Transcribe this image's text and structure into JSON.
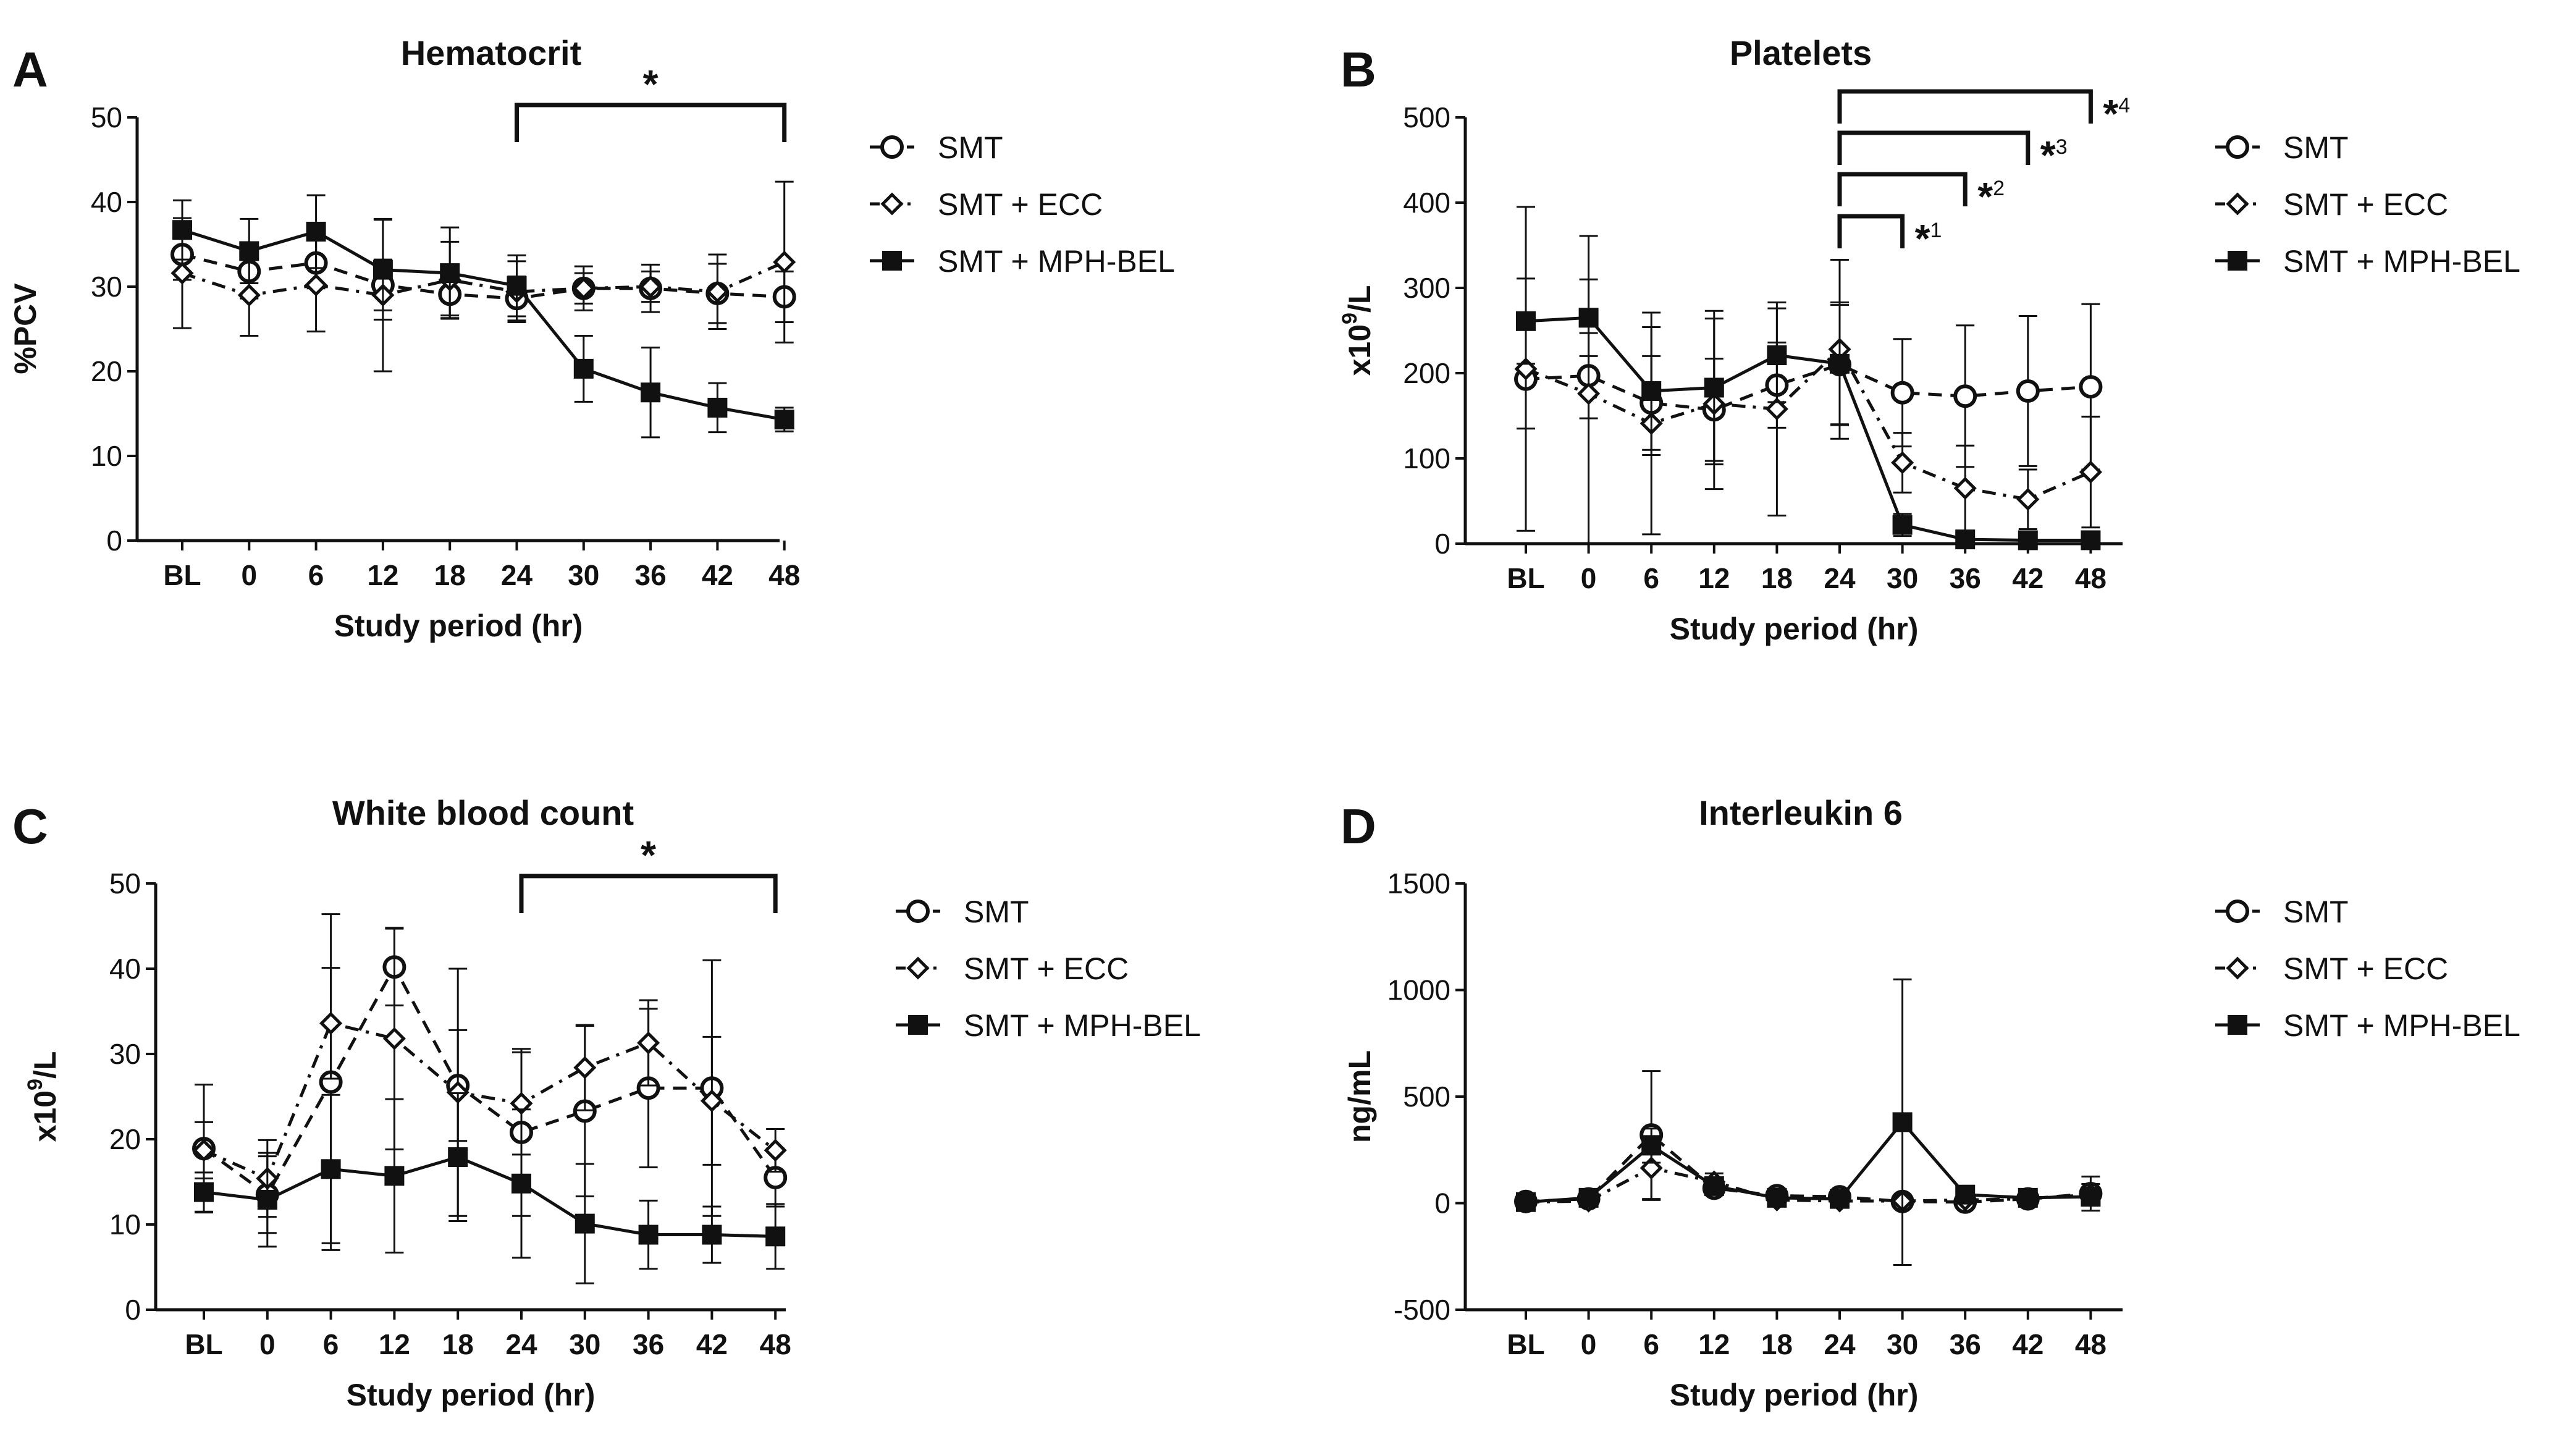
{
  "chart_data": [
    {
      "panel": "A",
      "type": "line",
      "title": "Hematocrit",
      "xlabel": "Study period (hr)",
      "ylabel": "%PCV",
      "categories": [
        "BL",
        "0",
        "6",
        "12",
        "18",
        "24",
        "30",
        "36",
        "42",
        "48"
      ],
      "ylim": [
        0,
        50
      ],
      "yticks": [
        "0",
        "10",
        "20",
        "30",
        "40",
        "50"
      ],
      "series": [
        {
          "name": "SMT",
          "marker": "open-circle",
          "dash": "dashed",
          "values": [
            33.8,
            31.8,
            32.8,
            30.2,
            29.1,
            28.6,
            29.8,
            29.8,
            29.2,
            28.8
          ],
          "err": [
            3,
            3.2,
            3,
            3,
            2.5,
            2.6,
            2.6,
            2.8,
            3.5,
            3
          ]
        },
        {
          "name": "SMT + ECC",
          "marker": "open-diamond",
          "dash": "dashdot",
          "values": [
            31.6,
            29.0,
            30.2,
            29.0,
            30.8,
            29.4,
            29.8,
            30.0,
            29.4,
            32.9
          ],
          "err": [
            6.5,
            4.8,
            5.5,
            9,
            4.5,
            3.6,
            1.8,
            1.8,
            4.4,
            9.5
          ]
        },
        {
          "name": "SMT + MPH-BEL",
          "marker": "filled-square",
          "dash": "solid",
          "values": [
            36.7,
            34.2,
            36.5,
            32.0,
            31.6,
            30.1,
            20.3,
            17.5,
            15.7,
            14.3
          ],
          "err": [
            3.5,
            3.8,
            4.3,
            5.9,
            5.4,
            3.6,
            3.9,
            5.3,
            2.9,
            1.4
          ]
        }
      ],
      "significance": [
        {
          "from": "24",
          "to": "48",
          "label": "*"
        }
      ]
    },
    {
      "panel": "B",
      "type": "line",
      "title": "Platelets",
      "xlabel": "Study period (hr)",
      "ylabel": "x10",
      "ylabel_sup": "9",
      "ylabel_suffix": "/L",
      "categories": [
        "BL",
        "0",
        "6",
        "12",
        "18",
        "24",
        "30",
        "36",
        "42",
        "48"
      ],
      "ylim": [
        0,
        500
      ],
      "yticks": [
        "0",
        "100",
        "200",
        "300",
        "400",
        "500"
      ],
      "series": [
        {
          "name": "SMT",
          "marker": "open-circle",
          "dash": "dashed",
          "values": [
            193,
            197,
            165,
            157,
            186,
            210,
            177,
            173,
            179,
            184
          ],
          "err": [
            58,
            50,
            55,
            60,
            50,
            70,
            63,
            83,
            88,
            97
          ]
        },
        {
          "name": "SMT + ECC",
          "marker": "open-diamond",
          "dash": "dashdot",
          "values": [
            205,
            176,
            141,
            164,
            158,
            228,
            95,
            65,
            52,
            84
          ],
          "err": [
            190,
            185,
            130,
            100,
            125,
            105,
            35,
            50,
            35,
            65
          ]
        },
        {
          "name": "SMT + MPH-BEL",
          "marker": "filled-square",
          "dash": "solid",
          "values": [
            261,
            265,
            179,
            183,
            221,
            211,
            22,
            5,
            4,
            4
          ],
          "err": [
            50,
            45,
            75,
            90,
            55,
            72,
            13,
            5,
            4,
            4
          ]
        }
      ],
      "significance": [
        {
          "from": "24",
          "to": "30",
          "label": "*",
          "sup": "1"
        },
        {
          "from": "24",
          "to": "36",
          "label": "*",
          "sup": "2"
        },
        {
          "from": "24",
          "to": "42",
          "label": "*",
          "sup": "3"
        },
        {
          "from": "24",
          "to": "48",
          "label": "*",
          "sup": "4"
        }
      ]
    },
    {
      "panel": "C",
      "type": "line",
      "title": "White blood count",
      "xlabel": "Study period (hr)",
      "ylabel": "x10",
      "ylabel_sup": "9",
      "ylabel_suffix": "/L",
      "categories": [
        "BL",
        "0",
        "6",
        "12",
        "18",
        "24",
        "30",
        "36",
        "42",
        "48"
      ],
      "ylim": [
        0,
        50
      ],
      "yticks": [
        "0",
        "10",
        "20",
        "30",
        "40",
        "50"
      ],
      "series": [
        {
          "name": "SMT",
          "marker": "open-circle",
          "dash": "dashed",
          "values": [
            18.9,
            13.5,
            26.7,
            40.2,
            26.3,
            20.8,
            23.3,
            26.0,
            26.0,
            15.5
          ],
          "err": [
            7.5,
            4.5,
            19.7,
            4.5,
            6.5,
            9.8,
            10,
            9.3,
            15,
            3.4
          ]
        },
        {
          "name": "SMT + ECC",
          "marker": "open-diamond",
          "dash": "dashdot",
          "values": [
            18.7,
            15.4,
            33.6,
            31.8,
            25.5,
            24.2,
            28.4,
            31.3,
            24.5,
            18.7
          ],
          "err": [
            3.3,
            4.5,
            6.5,
            13,
            14.5,
            6,
            5,
            5,
            7.5,
            2.5
          ]
        },
        {
          "name": "SMT + MPH-BEL",
          "marker": "filled-square",
          "dash": "solid",
          "values": [
            13.8,
            12.9,
            16.5,
            15.7,
            17.9,
            14.8,
            10.1,
            8.8,
            8.8,
            8.6
          ],
          "err": [
            2.3,
            5.5,
            8.7,
            9,
            7.5,
            8.7,
            7,
            4,
            3.3,
            3.8
          ]
        }
      ],
      "significance": [
        {
          "from": "24",
          "to": "48",
          "label": "*"
        }
      ]
    },
    {
      "panel": "D",
      "type": "line",
      "title": "Interleukin 6",
      "xlabel": "Study period (hr)",
      "ylabel": "ng/mL",
      "categories": [
        "BL",
        "0",
        "6",
        "12",
        "18",
        "24",
        "30",
        "36",
        "42",
        "48"
      ],
      "ylim": [
        -500,
        1500
      ],
      "yticks": [
        "-500",
        "0",
        "500",
        "1000",
        "1500"
      ],
      "series": [
        {
          "name": "SMT",
          "marker": "open-circle",
          "dash": "dashed",
          "values": [
            8,
            20,
            320,
            70,
            35,
            30,
            8,
            5,
            20,
            45
          ],
          "err": [
            8,
            15,
            300,
            30,
            20,
            20,
            10,
            5,
            15,
            80
          ]
        },
        {
          "name": "SMT + ECC",
          "marker": "open-diamond",
          "dash": "dashdot",
          "values": [
            5,
            10,
            165,
            100,
            15,
            10,
            10,
            15,
            20,
            40
          ],
          "err": [
            5,
            10,
            150,
            40,
            10,
            8,
            8,
            10,
            12,
            50
          ]
        },
        {
          "name": "SMT + MPH-BEL",
          "marker": "filled-square",
          "dash": "solid",
          "values": [
            5,
            25,
            270,
            80,
            25,
            20,
            380,
            40,
            25,
            30
          ],
          "err": [
            5,
            20,
            80,
            30,
            15,
            15,
            670,
            20,
            15,
            25
          ]
        }
      ],
      "significance": []
    }
  ]
}
